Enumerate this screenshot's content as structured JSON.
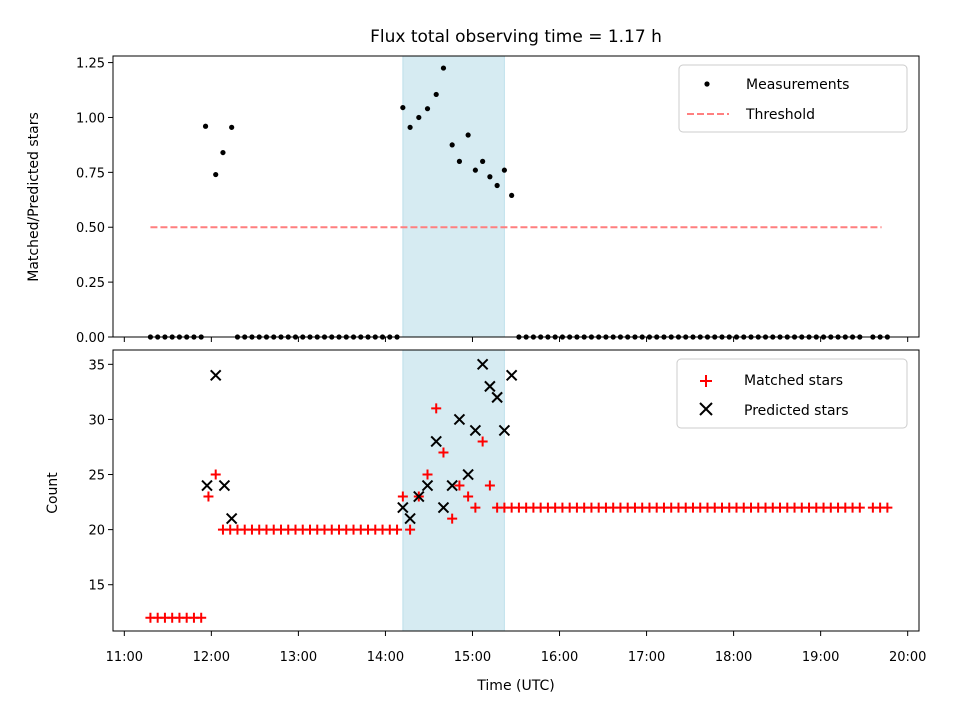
{
  "chart_data": [
    {
      "type": "scatter",
      "title": "Flux total observing time = 1.17 h",
      "xlabel": "",
      "ylabel": "Matched/Predicted stars",
      "ylim": [
        0,
        1.28
      ],
      "yticks": [
        0.0,
        0.25,
        0.5,
        0.75,
        1.0,
        1.25
      ],
      "ytick_labels": [
        "0.00",
        "0.25",
        "0.50",
        "0.75",
        "1.00",
        "1.25"
      ],
      "x_hours_range": [
        10.87,
        20.13
      ],
      "highlight_band": {
        "start": "14:12",
        "end": "15:22",
        "color": "#add8e6"
      },
      "legend": {
        "position": "top-right",
        "entries": [
          {
            "label": "Measurements",
            "marker": "dot",
            "color": "#000000"
          },
          {
            "label": "Threshold",
            "marker": "dashed-line",
            "color": "#ff7f7f"
          }
        ]
      },
      "series": [
        {
          "name": "Measurements",
          "color": "#000000",
          "points": [
            [
              "11:18",
              0
            ],
            [
              "11:23",
              0
            ],
            [
              "11:28",
              0
            ],
            [
              "11:33",
              0
            ],
            [
              "11:38",
              0
            ],
            [
              "11:43",
              0
            ],
            [
              "11:48",
              0
            ],
            [
              "11:53",
              0
            ],
            [
              "11:56",
              0.96
            ],
            [
              "12:03",
              0.74
            ],
            [
              "12:08",
              0.84
            ],
            [
              "12:14",
              0.955
            ],
            [
              "12:18",
              0
            ],
            [
              "12:23",
              0
            ],
            [
              "12:28",
              0
            ],
            [
              "12:33",
              0
            ],
            [
              "12:38",
              0
            ],
            [
              "12:43",
              0
            ],
            [
              "12:48",
              0
            ],
            [
              "12:53",
              0
            ],
            [
              "12:58",
              0
            ],
            [
              "13:03",
              0
            ],
            [
              "13:08",
              0
            ],
            [
              "13:13",
              0
            ],
            [
              "13:18",
              0
            ],
            [
              "13:23",
              0
            ],
            [
              "13:28",
              0
            ],
            [
              "13:33",
              0
            ],
            [
              "13:38",
              0
            ],
            [
              "13:43",
              0
            ],
            [
              "13:48",
              0
            ],
            [
              "13:53",
              0
            ],
            [
              "13:58",
              0
            ],
            [
              "14:03",
              0
            ],
            [
              "14:08",
              0
            ],
            [
              "14:12",
              1.045
            ],
            [
              "14:17",
              0.955
            ],
            [
              "14:23",
              1.0
            ],
            [
              "14:29",
              1.04
            ],
            [
              "14:35",
              1.105
            ],
            [
              "14:40",
              1.225
            ],
            [
              "14:46",
              0.875
            ],
            [
              "14:51",
              0.8
            ],
            [
              "14:57",
              0.92
            ],
            [
              "15:02",
              0.76
            ],
            [
              "15:07",
              0.8
            ],
            [
              "15:12",
              0.73
            ],
            [
              "15:17",
              0.69
            ],
            [
              "15:22",
              0.76
            ],
            [
              "15:27",
              0.645
            ],
            [
              "15:32",
              0
            ],
            [
              "15:37",
              0
            ],
            [
              "15:42",
              0
            ],
            [
              "15:47",
              0
            ],
            [
              "15:52",
              0
            ],
            [
              "15:57",
              0
            ],
            [
              "16:02",
              0
            ],
            [
              "16:07",
              0
            ],
            [
              "16:12",
              0
            ],
            [
              "16:17",
              0
            ],
            [
              "16:22",
              0
            ],
            [
              "16:27",
              0
            ],
            [
              "16:32",
              0
            ],
            [
              "16:37",
              0
            ],
            [
              "16:42",
              0
            ],
            [
              "16:47",
              0
            ],
            [
              "16:52",
              0
            ],
            [
              "16:57",
              0
            ],
            [
              "17:02",
              0
            ],
            [
              "17:07",
              0
            ],
            [
              "17:12",
              0
            ],
            [
              "17:17",
              0
            ],
            [
              "17:22",
              0
            ],
            [
              "17:27",
              0
            ],
            [
              "17:32",
              0
            ],
            [
              "17:37",
              0
            ],
            [
              "17:42",
              0
            ],
            [
              "17:47",
              0
            ],
            [
              "17:52",
              0
            ],
            [
              "17:57",
              0
            ],
            [
              "18:02",
              0
            ],
            [
              "18:07",
              0
            ],
            [
              "18:12",
              0
            ],
            [
              "18:17",
              0
            ],
            [
              "18:22",
              0
            ],
            [
              "18:27",
              0
            ],
            [
              "18:32",
              0
            ],
            [
              "18:37",
              0
            ],
            [
              "18:42",
              0
            ],
            [
              "18:47",
              0
            ],
            [
              "18:52",
              0
            ],
            [
              "18:57",
              0
            ],
            [
              "19:02",
              0
            ],
            [
              "19:07",
              0
            ],
            [
              "19:12",
              0
            ],
            [
              "19:17",
              0
            ],
            [
              "19:22",
              0
            ],
            [
              "19:27",
              0
            ],
            [
              "19:36",
              0
            ],
            [
              "19:41",
              0
            ],
            [
              "19:46",
              0
            ]
          ]
        },
        {
          "name": "Threshold",
          "color": "#ff7f7f",
          "style": "dashed",
          "points": [
            [
              "11:18",
              0.5
            ],
            [
              "19:42",
              0.5
            ]
          ]
        }
      ]
    },
    {
      "type": "scatter",
      "title": "",
      "xlabel": "Time (UTC)",
      "ylabel": "Count",
      "ylim": [
        10.8,
        36.3
      ],
      "yticks": [
        15,
        20,
        25,
        30,
        35
      ],
      "ytick_labels": [
        "15",
        "20",
        "25",
        "30",
        "35"
      ],
      "x_hours_range": [
        10.87,
        20.13
      ],
      "xticks": [
        "11:00",
        "12:00",
        "13:00",
        "14:00",
        "15:00",
        "16:00",
        "17:00",
        "18:00",
        "19:00",
        "20:00"
      ],
      "highlight_band": {
        "start": "14:12",
        "end": "15:22",
        "color": "#add8e6"
      },
      "legend": {
        "position": "top-right",
        "entries": [
          {
            "label": "Matched stars",
            "marker": "plus",
            "color": "#ff0000"
          },
          {
            "label": "Predicted stars",
            "marker": "x",
            "color": "#000000"
          }
        ]
      },
      "series": [
        {
          "name": "Matched stars",
          "color": "#ff0000",
          "points": [
            [
              "11:18",
              12
            ],
            [
              "11:23",
              12
            ],
            [
              "11:28",
              12
            ],
            [
              "11:33",
              12
            ],
            [
              "11:38",
              12
            ],
            [
              "11:43",
              12
            ],
            [
              "11:48",
              12
            ],
            [
              "11:53",
              12
            ],
            [
              "11:58",
              23
            ],
            [
              "12:03",
              25
            ],
            [
              "12:08",
              20
            ],
            [
              "12:13",
              20
            ],
            [
              "12:18",
              20
            ],
            [
              "12:23",
              20
            ],
            [
              "12:28",
              20
            ],
            [
              "12:33",
              20
            ],
            [
              "12:38",
              20
            ],
            [
              "12:43",
              20
            ],
            [
              "12:48",
              20
            ],
            [
              "12:53",
              20
            ],
            [
              "12:58",
              20
            ],
            [
              "13:03",
              20
            ],
            [
              "13:08",
              20
            ],
            [
              "13:13",
              20
            ],
            [
              "13:18",
              20
            ],
            [
              "13:23",
              20
            ],
            [
              "13:28",
              20
            ],
            [
              "13:33",
              20
            ],
            [
              "13:38",
              20
            ],
            [
              "13:43",
              20
            ],
            [
              "13:48",
              20
            ],
            [
              "13:53",
              20
            ],
            [
              "13:58",
              20
            ],
            [
              "14:03",
              20
            ],
            [
              "14:08",
              20
            ],
            [
              "14:12",
              23
            ],
            [
              "14:17",
              20
            ],
            [
              "14:23",
              23
            ],
            [
              "14:29",
              25
            ],
            [
              "14:35",
              31
            ],
            [
              "14:40",
              27
            ],
            [
              "14:46",
              21
            ],
            [
              "14:51",
              24
            ],
            [
              "14:57",
              23
            ],
            [
              "15:02",
              22
            ],
            [
              "15:07",
              28
            ],
            [
              "15:12",
              24
            ],
            [
              "15:17",
              22
            ],
            [
              "15:22",
              22
            ],
            [
              "15:27",
              22
            ],
            [
              "15:32",
              22
            ],
            [
              "15:37",
              22
            ],
            [
              "15:42",
              22
            ],
            [
              "15:47",
              22
            ],
            [
              "15:52",
              22
            ],
            [
              "15:57",
              22
            ],
            [
              "16:02",
              22
            ],
            [
              "16:07",
              22
            ],
            [
              "16:12",
              22
            ],
            [
              "16:17",
              22
            ],
            [
              "16:22",
              22
            ],
            [
              "16:27",
              22
            ],
            [
              "16:32",
              22
            ],
            [
              "16:37",
              22
            ],
            [
              "16:42",
              22
            ],
            [
              "16:47",
              22
            ],
            [
              "16:52",
              22
            ],
            [
              "16:57",
              22
            ],
            [
              "17:02",
              22
            ],
            [
              "17:07",
              22
            ],
            [
              "17:12",
              22
            ],
            [
              "17:17",
              22
            ],
            [
              "17:22",
              22
            ],
            [
              "17:27",
              22
            ],
            [
              "17:32",
              22
            ],
            [
              "17:37",
              22
            ],
            [
              "17:42",
              22
            ],
            [
              "17:47",
              22
            ],
            [
              "17:52",
              22
            ],
            [
              "17:57",
              22
            ],
            [
              "18:02",
              22
            ],
            [
              "18:07",
              22
            ],
            [
              "18:12",
              22
            ],
            [
              "18:17",
              22
            ],
            [
              "18:22",
              22
            ],
            [
              "18:27",
              22
            ],
            [
              "18:32",
              22
            ],
            [
              "18:37",
              22
            ],
            [
              "18:42",
              22
            ],
            [
              "18:47",
              22
            ],
            [
              "18:52",
              22
            ],
            [
              "18:57",
              22
            ],
            [
              "19:02",
              22
            ],
            [
              "19:07",
              22
            ],
            [
              "19:12",
              22
            ],
            [
              "19:17",
              22
            ],
            [
              "19:22",
              22
            ],
            [
              "19:27",
              22
            ],
            [
              "19:36",
              22
            ],
            [
              "19:41",
              22
            ],
            [
              "19:46",
              22
            ]
          ]
        },
        {
          "name": "Predicted stars",
          "color": "#000000",
          "points": [
            [
              "11:57",
              24
            ],
            [
              "12:03",
              34
            ],
            [
              "12:09",
              24
            ],
            [
              "12:14",
              21
            ],
            [
              "14:12",
              22
            ],
            [
              "14:17",
              21
            ],
            [
              "14:23",
              23
            ],
            [
              "14:29",
              24
            ],
            [
              "14:35",
              28
            ],
            [
              "14:40",
              22
            ],
            [
              "14:46",
              24
            ],
            [
              "14:51",
              30
            ],
            [
              "14:57",
              25
            ],
            [
              "15:02",
              29
            ],
            [
              "15:07",
              35
            ],
            [
              "15:12",
              33
            ],
            [
              "15:17",
              32
            ],
            [
              "15:22",
              29
            ],
            [
              "15:27",
              34
            ]
          ]
        }
      ]
    }
  ]
}
